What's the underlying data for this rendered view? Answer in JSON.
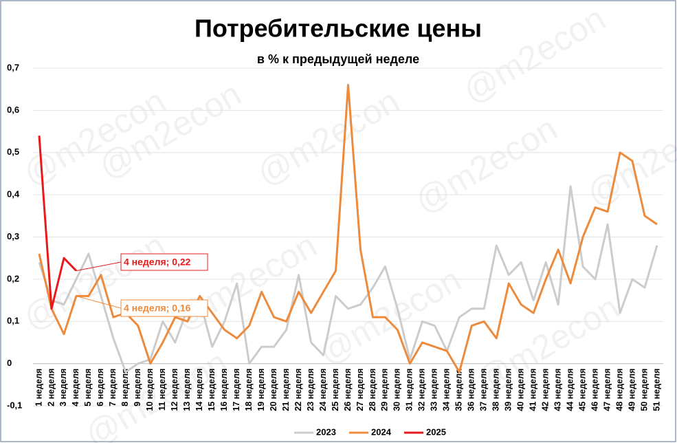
{
  "chart_data": {
    "type": "line",
    "title": "Потребительские цены",
    "subtitle": "в % к предыдущей неделе",
    "watermark": "@m2econ",
    "categories": [
      "1 неделя",
      "2 неделя",
      "3 неделя",
      "4 неделя",
      "5 неделя",
      "6 неделя",
      "7 неделя",
      "8 неделя",
      "9 неделя",
      "10 неделя",
      "11 неделя",
      "12 неделя",
      "13 неделя",
      "14 неделя",
      "15 неделя",
      "16 неделя",
      "17 неделя",
      "18 неделя",
      "19 неделя",
      "20 неделя",
      "21 неделя",
      "22 неделя",
      "23 неделя",
      "24 неделя",
      "25 неделя",
      "26 неделя",
      "27 неделя",
      "28 неделя",
      "29 неделя",
      "30 неделя",
      "31 неделя",
      "32 неделя",
      "33 неделя",
      "34 неделя",
      "35 неделя",
      "36 неделя",
      "37 неделя",
      "38 неделя",
      "39 неделя",
      "40 неделя",
      "41 неделя",
      "42 неделя",
      "43 неделя",
      "44 неделя",
      "45 неделя",
      "46 неделя",
      "47 неделя",
      "48 неделя",
      "49 неделя",
      "50 неделя",
      "51 неделя"
    ],
    "series": [
      {
        "name": "2023",
        "color": "#cccccc",
        "values": [
          0.24,
          0.15,
          0.14,
          0.2,
          0.26,
          0.16,
          0.06,
          -0.02,
          0,
          0.01,
          0.1,
          0.05,
          0.13,
          0.15,
          0.04,
          0.1,
          0.19,
          0,
          0.04,
          0.04,
          0.08,
          0.21,
          0.05,
          0.02,
          0.16,
          0.13,
          0.14,
          0.18,
          0.23,
          0.13,
          0.01,
          0.1,
          0.09,
          0.03,
          0.11,
          0.13,
          0.13,
          0.28,
          0.21,
          0.24,
          0.15,
          0.24,
          0.14,
          0.42,
          0.23,
          0.2,
          0.33,
          0.12,
          0.2,
          0.18,
          0.28
        ]
      },
      {
        "name": "2024",
        "color": "#ed8a3b",
        "values": [
          0.26,
          0.13,
          0.07,
          0.16,
          0.16,
          0.21,
          0.11,
          0.12,
          0.09,
          0,
          0.05,
          0.11,
          0.1,
          0.16,
          0.12,
          0.08,
          0.06,
          0.09,
          0.17,
          0.11,
          0.1,
          0.17,
          0.12,
          0.17,
          0.22,
          0.66,
          0.27,
          0.11,
          0.11,
          0.08,
          0,
          0.05,
          0.04,
          0.03,
          -0.02,
          0.09,
          0.1,
          0.06,
          0.19,
          0.14,
          0.12,
          0.2,
          0.27,
          0.19,
          0.3,
          0.37,
          0.36,
          0.5,
          0.48,
          0.35,
          0.33
        ]
      },
      {
        "name": "2025",
        "color": "#e8191b",
        "values": [
          0.54,
          0.13,
          0.25,
          0.22,
          null,
          null,
          null,
          null,
          null,
          null,
          null,
          null,
          null,
          null,
          null,
          null,
          null,
          null,
          null,
          null,
          null,
          null,
          null,
          null,
          null,
          null,
          null,
          null,
          null,
          null,
          null,
          null,
          null,
          null,
          null,
          null,
          null,
          null,
          null,
          null,
          null,
          null,
          null,
          null,
          null,
          null,
          null,
          null,
          null,
          null,
          null
        ]
      }
    ],
    "annotations": [
      {
        "text": "4 неделя; 0,22",
        "series": 2,
        "index": 3
      },
      {
        "text": "4 неделя; 0,16",
        "series": 1,
        "index": 3
      }
    ],
    "ylim": [
      -0.1,
      0.7
    ],
    "yticks": [
      {
        "value": -0.1,
        "label": "-0,1"
      },
      0,
      {
        "value": 0.1,
        "label": "0,1"
      },
      {
        "value": 0.2,
        "label": "0,2"
      },
      {
        "value": 0.3,
        "label": "0,3"
      },
      {
        "value": 0.4,
        "label": "0,4"
      },
      {
        "value": 0.5,
        "label": "0,5"
      },
      {
        "value": 0.6,
        "label": "0,6"
      },
      {
        "value": 0.7,
        "label": "0,7"
      }
    ],
    "grid": true,
    "legend": "bottom"
  }
}
